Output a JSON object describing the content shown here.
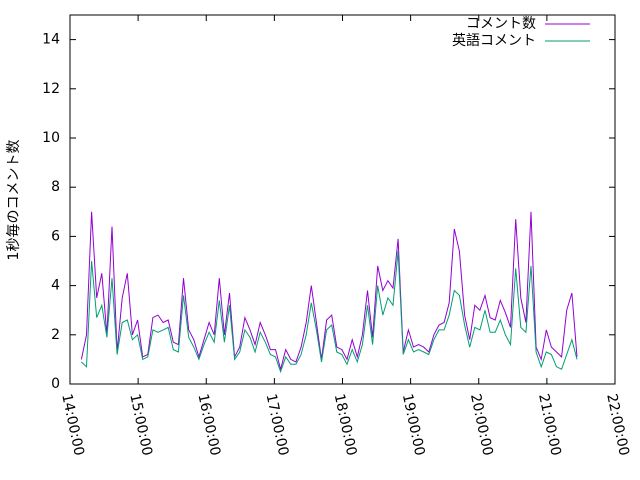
{
  "chart_data": {
    "type": "line",
    "y_label": "1秒毎のコメント数",
    "legend": "top-right",
    "xlim": [
      "14:00:00",
      "22:00:00"
    ],
    "xticks": [
      "14:00:00",
      "15:00:00",
      "16:00:00",
      "17:00:00",
      "18:00:00",
      "19:00:00",
      "20:00:00",
      "21:00:00",
      "22:00:00"
    ],
    "ylim": [
      0,
      15
    ],
    "yticks": [
      0,
      2,
      4,
      6,
      8,
      10,
      12,
      14
    ],
    "x": [
      "14:10:00",
      "14:14:30",
      "14:19:00",
      "14:23:30",
      "14:28:00",
      "14:32:30",
      "14:37:00",
      "14:41:30",
      "14:46:00",
      "14:50:30",
      "14:55:00",
      "14:59:30",
      "15:04:00",
      "15:08:30",
      "15:13:00",
      "15:17:30",
      "15:22:00",
      "15:26:30",
      "15:31:00",
      "15:35:30",
      "15:40:00",
      "15:44:30",
      "15:49:00",
      "15:53:30",
      "15:58:00",
      "16:02:30",
      "16:07:00",
      "16:11:30",
      "16:16:00",
      "16:20:30",
      "16:25:00",
      "16:29:30",
      "16:34:00",
      "16:38:30",
      "16:43:00",
      "16:47:30",
      "16:52:00",
      "16:56:30",
      "17:01:00",
      "17:05:30",
      "17:10:00",
      "17:14:30",
      "17:19:00",
      "17:23:30",
      "17:28:00",
      "17:32:30",
      "17:37:00",
      "17:41:30",
      "17:46:00",
      "17:50:30",
      "17:55:00",
      "17:59:30",
      "18:04:00",
      "18:08:30",
      "18:13:00",
      "18:17:30",
      "18:22:00",
      "18:26:30",
      "18:31:00",
      "18:35:30",
      "18:40:00",
      "18:44:30",
      "18:49:00",
      "18:53:30",
      "18:58:00",
      "19:02:30",
      "19:07:00",
      "19:11:30",
      "19:16:00",
      "19:20:30",
      "19:25:00",
      "19:29:30",
      "19:34:00",
      "19:38:30",
      "19:43:00",
      "19:47:30",
      "19:52:00",
      "19:56:30",
      "20:01:00",
      "20:05:30",
      "20:10:00",
      "20:14:30",
      "20:19:00",
      "20:23:30",
      "20:28:00",
      "20:32:30",
      "20:37:00",
      "20:41:30",
      "20:46:00",
      "20:50:30",
      "20:55:00",
      "20:59:30",
      "21:04:00",
      "21:08:30",
      "21:13:00",
      "21:17:30",
      "21:22:00",
      "21:26:30"
    ],
    "series": [
      {
        "name": "コメント数",
        "color": "#9400d3",
        "values": [
          1,
          2,
          7,
          3.5,
          4.5,
          2,
          6.4,
          1.3,
          3.5,
          4.5,
          2,
          2.6,
          1.1,
          1.2,
          2.7,
          2.8,
          2.5,
          2.6,
          1.7,
          1.6,
          4.3,
          2.2,
          1.8,
          1.1,
          1.8,
          2.5,
          2,
          4.3,
          2,
          3.7,
          1.1,
          1.5,
          2.7,
          2.2,
          1.6,
          2.5,
          2,
          1.4,
          1.4,
          0.6,
          1.4,
          1,
          0.9,
          1.5,
          2.5,
          4,
          2.5,
          1,
          2.6,
          2.8,
          1.5,
          1.4,
          1,
          1.8,
          1.1,
          2,
          3.8,
          1.9,
          4.8,
          3.8,
          4.2,
          3.9,
          5.9,
          1.3,
          2.2,
          1.5,
          1.6,
          1.5,
          1.3,
          2,
          2.4,
          2.5,
          3.3,
          6.3,
          5.4,
          2.8,
          1.8,
          3.2,
          3,
          3.6,
          2.7,
          2.6,
          3.4,
          2.9,
          2.3,
          6.7,
          3.5,
          2.5,
          7,
          1.5,
          1,
          2.2,
          1.5,
          1.3,
          1.1,
          3,
          3.7,
          1.1
        ]
      },
      {
        "name": "英語コメント",
        "color": "#009e73",
        "values": [
          0.9,
          0.7,
          5,
          2.7,
          3.2,
          1.9,
          4.3,
          1.2,
          2.5,
          2.6,
          1.8,
          2,
          1,
          1.1,
          2.2,
          2.1,
          2.2,
          2.3,
          1.4,
          1.3,
          3.6,
          1.9,
          1.5,
          1,
          1.6,
          2.1,
          1.7,
          3.4,
          1.7,
          3.2,
          1,
          1.3,
          2.2,
          1.9,
          1.3,
          2.1,
          1.7,
          1.2,
          1.1,
          0.5,
          1.1,
          0.8,
          0.8,
          1.2,
          2,
          3.3,
          2.2,
          0.9,
          2.2,
          2.4,
          1.3,
          1.2,
          0.8,
          1.4,
          0.9,
          1.6,
          3.2,
          1.6,
          4,
          2.8,
          3.5,
          3.2,
          5.4,
          1.2,
          1.8,
          1.3,
          1.4,
          1.3,
          1.2,
          1.8,
          2.2,
          2.2,
          2.8,
          3.8,
          3.6,
          2.4,
          1.5,
          2.3,
          2.2,
          3,
          2.1,
          2.1,
          2.6,
          2,
          1.6,
          4.7,
          2.3,
          2.1,
          4.8,
          1.3,
          0.7,
          1.3,
          1.2,
          0.7,
          0.6,
          1.2,
          1.8,
          1
        ]
      }
    ]
  }
}
